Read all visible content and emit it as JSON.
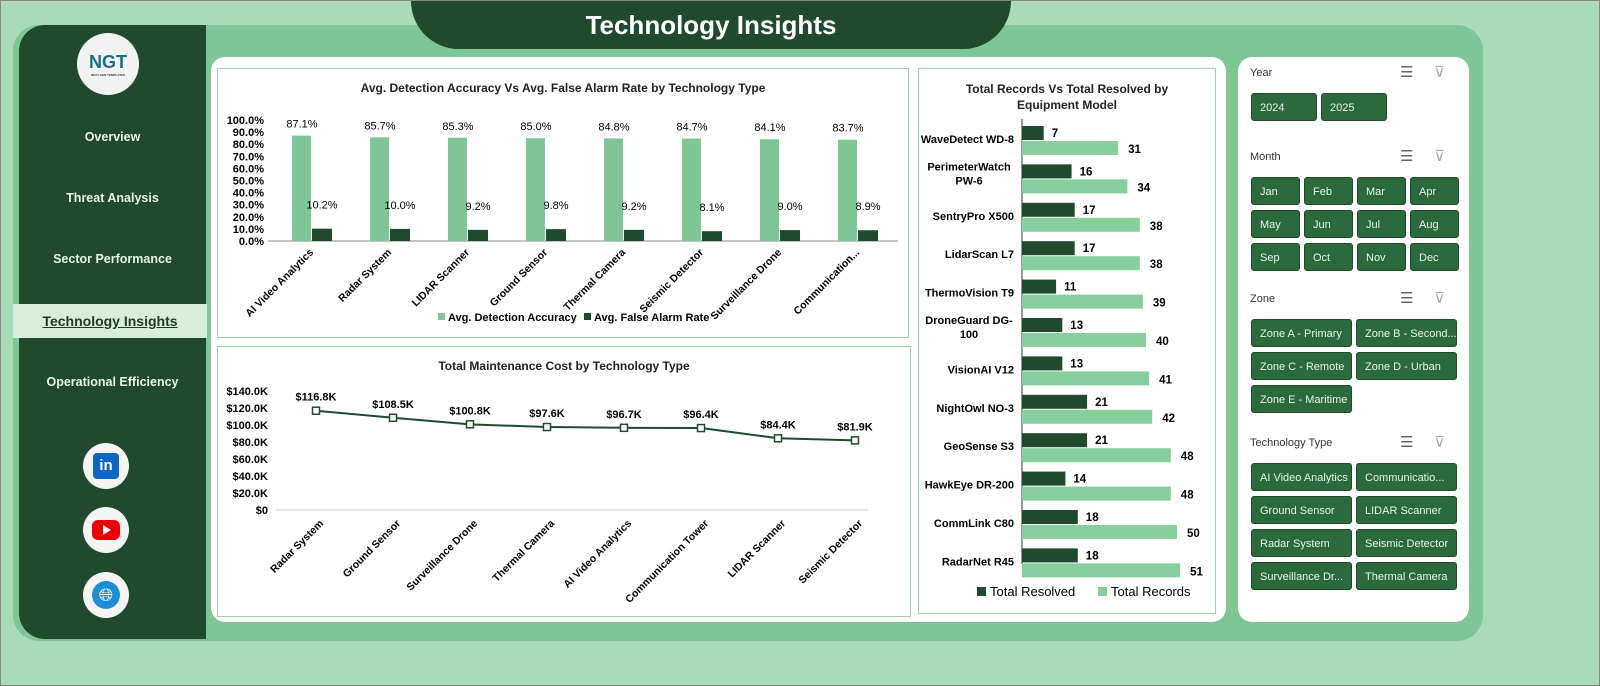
{
  "title": "Technology Insights",
  "logo": {
    "text": "NGT",
    "sub": "NEXT GEN TEMPLATES"
  },
  "nav": [
    "Overview",
    "Threat Analysis",
    "Sector Performance",
    "Technology Insights",
    "Operational Efficiency"
  ],
  "social": [
    "linkedin-icon",
    "youtube-icon",
    "globe-icon"
  ],
  "colors": {
    "dark": "#1f4a2e",
    "light": "#7fc697",
    "button": "#2a6a3d"
  },
  "chart_data": [
    {
      "type": "bar",
      "title": "Avg. Detection Accuracy Vs Avg. False Alarm Rate by Technology Type",
      "categories": [
        "AI Video Analytics",
        "Radar System",
        "LIDAR Scanner",
        "Ground Sensor",
        "Thermal Camera",
        "Seismic Detector",
        "Surveillance Drone",
        "Communication..."
      ],
      "series": [
        {
          "name": "Avg. Detection Accuracy",
          "values": [
            87.1,
            85.7,
            85.3,
            85.0,
            84.8,
            84.7,
            84.1,
            83.7
          ],
          "labels": [
            "87.1%",
            "85.7%",
            "85.3%",
            "85.0%",
            "84.8%",
            "84.7%",
            "84.1%",
            "83.7%"
          ]
        },
        {
          "name": "Avg. False Alarm Rate",
          "values": [
            10.2,
            10.0,
            9.2,
            9.8,
            9.2,
            8.1,
            9.0,
            8.9
          ],
          "labels": [
            "10.2%",
            "10.0%",
            "9.2%",
            "9.8%",
            "9.2%",
            "8.1%",
            "9.0%",
            "8.9%"
          ]
        }
      ],
      "yticks": [
        "0.0%",
        "10.0%",
        "20.0%",
        "30.0%",
        "40.0%",
        "50.0%",
        "60.0%",
        "70.0%",
        "80.0%",
        "90.0%",
        "100.0%"
      ],
      "ylim": [
        0,
        100
      ],
      "legend": "bottom"
    },
    {
      "type": "line",
      "title": "Total Maintenance Cost by Technology Type",
      "categories": [
        "Radar System",
        "Ground Sensor",
        "Surveillance Drone",
        "Thermal Camera",
        "AI Video Analytics",
        "Communication Tower",
        "LIDAR Scanner",
        "Seismic Detector"
      ],
      "values": [
        116.8,
        108.5,
        100.8,
        97.6,
        96.7,
        96.4,
        84.4,
        81.9
      ],
      "labels": [
        "$116.8K",
        "$108.5K",
        "$100.8K",
        "$97.6K",
        "$96.7K",
        "$96.4K",
        "$84.4K",
        "$81.9K"
      ],
      "yticks": [
        "$0",
        "$20.0K",
        "$40.0K",
        "$60.0K",
        "$80.0K",
        "$100.0K",
        "$120.0K",
        "$140.0K"
      ],
      "ylim": [
        0,
        140
      ]
    },
    {
      "type": "bar",
      "orientation": "horizontal",
      "title": "Total Records Vs Total Resolved by Equipment Model",
      "categories": [
        "WaveDetect WD-8",
        "PerimeterWatch PW-6",
        "SentryPro X500",
        "LidarScan L7",
        "ThermoVision T9",
        "DroneGuard DG-100",
        "VisionAI V12",
        "NightOwl NO-3",
        "GeoSense S3",
        "HawkEye DR-200",
        "CommLink C80",
        "RadarNet R45"
      ],
      "series": [
        {
          "name": "Total Resolved",
          "values": [
            7,
            16,
            17,
            17,
            11,
            13,
            13,
            21,
            21,
            14,
            18,
            18
          ]
        },
        {
          "name": "Total Records",
          "values": [
            31,
            34,
            38,
            38,
            39,
            40,
            41,
            42,
            48,
            48,
            50,
            51
          ]
        }
      ],
      "legend": "bottom"
    }
  ],
  "slicers": [
    {
      "label": "Year",
      "items": [
        "2024",
        "2025"
      ]
    },
    {
      "label": "Month",
      "items": [
        "Jan",
        "Feb",
        "Mar",
        "Apr",
        "May",
        "Jun",
        "Jul",
        "Aug",
        "Sep",
        "Oct",
        "Nov",
        "Dec"
      ]
    },
    {
      "label": "Zone",
      "items": [
        "Zone A - Primary",
        "Zone B - Second...",
        "Zone C - Remote",
        "Zone D - Urban",
        "Zone E - Maritime"
      ]
    },
    {
      "label": "Technology Type",
      "items": [
        "AI Video Analytics",
        "Communicatio...",
        "Ground Sensor",
        "LIDAR Scanner",
        "Radar System",
        "Seismic Detector",
        "Surveillance Dr...",
        "Thermal Camera"
      ]
    }
  ]
}
